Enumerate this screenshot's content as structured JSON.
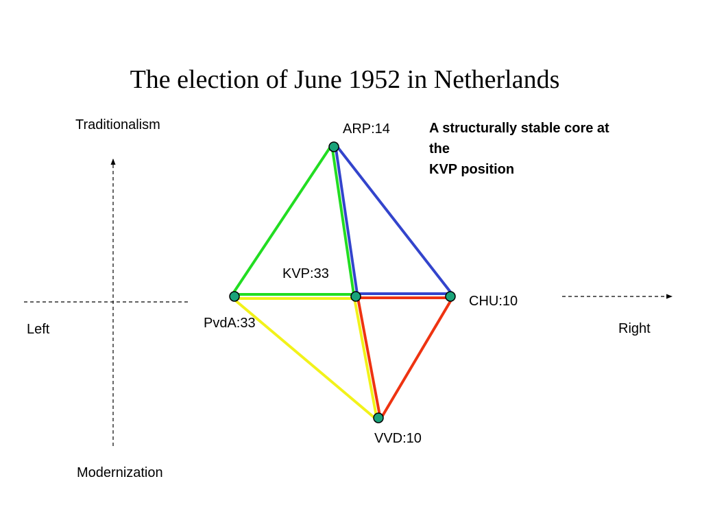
{
  "title": "The election of June 1952 in Netherlands",
  "axes": {
    "top": "Traditionalism",
    "bottom": "Modernization",
    "left": "Left",
    "right": "Right"
  },
  "note": {
    "lines": [
      "A structurally stable core at",
      "the",
      "KVP position"
    ]
  },
  "parties": [
    {
      "id": "arp",
      "label": "ARP:14",
      "seats": 14
    },
    {
      "id": "kvp",
      "label": "KVP:33",
      "seats": 33
    },
    {
      "id": "pvda",
      "label": "PvdA:33",
      "seats": 33
    },
    {
      "id": "chu",
      "label": "CHU:10",
      "seats": 10
    },
    {
      "id": "vvd",
      "label": "VVD:10",
      "seats": 10
    }
  ],
  "coalitions": [
    {
      "id": "green",
      "color": "#22dd22",
      "members": [
        "pvda",
        "arp",
        "kvp"
      ]
    },
    {
      "id": "blue",
      "color": "#3344cc",
      "members": [
        "arp",
        "chu",
        "kvp"
      ]
    },
    {
      "id": "yellow",
      "color": "#f2f21a",
      "members": [
        "pvda",
        "kvp",
        "vvd"
      ]
    },
    {
      "id": "red",
      "color": "#ee3311",
      "members": [
        "kvp",
        "chu",
        "vvd"
      ]
    }
  ],
  "colors": {
    "node_fill": "#1aa37a",
    "node_stroke": "#000000",
    "axis": "#000000"
  }
}
